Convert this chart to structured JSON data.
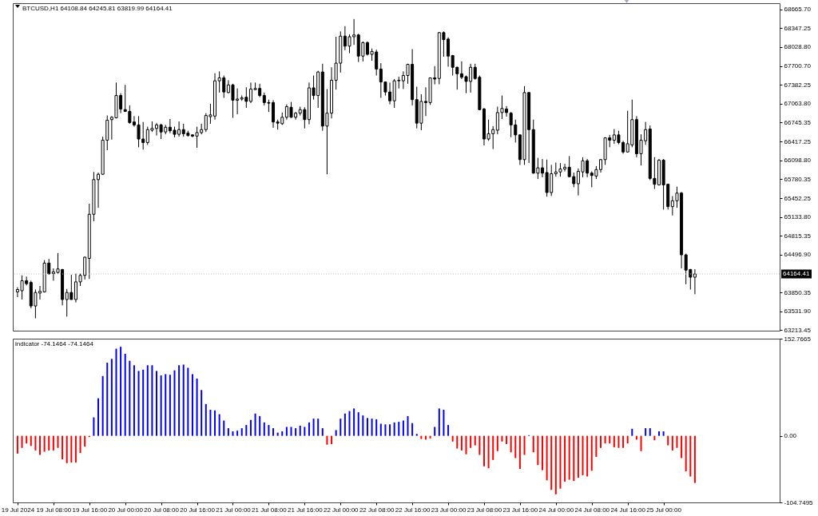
{
  "chart_data": [
    {
      "type": "candlestick",
      "title": "BTCUSD,H1 64108.84 64245.81 63819.99 64164.41",
      "x": [
        "2024-07-19T00:00",
        "2024-07-19T01:00",
        "2024-07-19T02:00",
        "2024-07-19T03:00",
        "2024-07-19T04:00",
        "2024-07-19T05:00",
        "2024-07-19T06:00",
        "2024-07-19T07:00",
        "2024-07-19T08:00",
        "2024-07-19T09:00",
        "2024-07-19T10:00",
        "2024-07-19T11:00",
        "2024-07-19T12:00",
        "2024-07-19T13:00",
        "2024-07-19T14:00",
        "2024-07-19T15:00",
        "2024-07-19T16:00",
        "2024-07-19T17:00",
        "2024-07-19T18:00",
        "2024-07-19T19:00",
        "2024-07-19T20:00",
        "2024-07-19T21:00",
        "2024-07-19T22:00",
        "2024-07-19T23:00",
        "2024-07-20T00:00",
        "2024-07-20T01:00",
        "2024-07-20T02:00",
        "2024-07-20T03:00",
        "2024-07-20T04:00",
        "2024-07-20T05:00",
        "2024-07-20T06:00",
        "2024-07-20T07:00",
        "2024-07-20T08:00",
        "2024-07-20T09:00",
        "2024-07-20T10:00",
        "2024-07-20T11:00",
        "2024-07-20T12:00",
        "2024-07-20T13:00",
        "2024-07-20T14:00",
        "2024-07-20T15:00",
        "2024-07-20T16:00",
        "2024-07-20T17:00",
        "2024-07-20T18:00",
        "2024-07-20T19:00",
        "2024-07-20T20:00",
        "2024-07-20T21:00",
        "2024-07-20T22:00",
        "2024-07-20T23:00",
        "2024-07-21T00:00",
        "2024-07-21T01:00",
        "2024-07-21T02:00",
        "2024-07-21T03:00",
        "2024-07-21T04:00",
        "2024-07-21T05:00",
        "2024-07-21T06:00",
        "2024-07-21T07:00",
        "2024-07-21T08:00",
        "2024-07-21T09:00",
        "2024-07-21T10:00",
        "2024-07-21T11:00",
        "2024-07-21T12:00",
        "2024-07-21T13:00",
        "2024-07-21T14:00",
        "2024-07-21T15:00",
        "2024-07-21T16:00",
        "2024-07-21T17:00",
        "2024-07-21T18:00",
        "2024-07-21T19:00",
        "2024-07-21T20:00",
        "2024-07-21T21:00",
        "2024-07-21T22:00",
        "2024-07-21T23:00",
        "2024-07-22T00:00",
        "2024-07-22T01:00",
        "2024-07-22T02:00",
        "2024-07-22T03:00",
        "2024-07-22T04:00",
        "2024-07-22T05:00",
        "2024-07-22T06:00",
        "2024-07-22T07:00",
        "2024-07-22T08:00",
        "2024-07-22T09:00",
        "2024-07-22T10:00",
        "2024-07-22T11:00",
        "2024-07-22T12:00",
        "2024-07-22T13:00",
        "2024-07-22T14:00",
        "2024-07-22T15:00",
        "2024-07-22T16:00",
        "2024-07-22T17:00",
        "2024-07-22T18:00",
        "2024-07-22T19:00",
        "2024-07-22T20:00",
        "2024-07-22T21:00",
        "2024-07-22T22:00",
        "2024-07-22T23:00",
        "2024-07-23T00:00",
        "2024-07-23T01:00",
        "2024-07-23T02:00",
        "2024-07-23T03:00",
        "2024-07-23T04:00",
        "2024-07-23T05:00",
        "2024-07-23T06:00",
        "2024-07-23T07:00",
        "2024-07-23T08:00",
        "2024-07-23T09:00",
        "2024-07-23T10:00",
        "2024-07-23T11:00",
        "2024-07-23T12:00",
        "2024-07-23T13:00",
        "2024-07-23T14:00",
        "2024-07-23T15:00",
        "2024-07-23T16:00",
        "2024-07-23T17:00",
        "2024-07-23T18:00",
        "2024-07-23T19:00",
        "2024-07-23T20:00",
        "2024-07-23T21:00",
        "2024-07-23T22:00",
        "2024-07-23T23:00",
        "2024-07-24T00:00",
        "2024-07-24T01:00",
        "2024-07-24T02:00",
        "2024-07-24T03:00",
        "2024-07-24T04:00",
        "2024-07-24T05:00",
        "2024-07-24T06:00",
        "2024-07-24T07:00",
        "2024-07-24T08:00",
        "2024-07-24T09:00",
        "2024-07-24T10:00",
        "2024-07-24T11:00",
        "2024-07-24T12:00",
        "2024-07-24T13:00",
        "2024-07-24T14:00",
        "2024-07-24T15:00",
        "2024-07-24T16:00",
        "2024-07-24T17:00",
        "2024-07-24T18:00",
        "2024-07-24T19:00",
        "2024-07-24T20:00",
        "2024-07-24T21:00",
        "2024-07-24T22:00",
        "2024-07-24T23:00",
        "2024-07-25T00:00",
        "2024-07-25T01:00",
        "2024-07-25T02:00",
        "2024-07-25T03:00",
        "2024-07-25T04:00",
        "2024-07-25T05:00",
        "2024-07-25T06:00",
        "2024-07-25T07:00"
      ],
      "ohlc": [
        [
          63860,
          63940,
          63770,
          63900
        ],
        [
          63880,
          64140,
          63730,
          64050
        ],
        [
          64050,
          64120,
          63970,
          64000
        ],
        [
          64020,
          64050,
          63580,
          63620
        ],
        [
          63620,
          63900,
          63410,
          63850
        ],
        [
          63840,
          63960,
          63730,
          63870
        ],
        [
          63860,
          64400,
          63850,
          64350
        ],
        [
          64350,
          64420,
          64150,
          64170
        ],
        [
          64170,
          64260,
          64050,
          64200
        ],
        [
          64190,
          64520,
          64170,
          64250
        ],
        [
          64240,
          64250,
          63630,
          63730
        ],
        [
          63730,
          63910,
          63440,
          63850
        ],
        [
          63850,
          64150,
          63730,
          63730
        ],
        [
          63730,
          64170,
          63680,
          64030
        ],
        [
          64030,
          64170,
          63960,
          64140
        ],
        [
          64140,
          64460,
          64070,
          64450
        ],
        [
          64430,
          65360,
          64080,
          65180
        ],
        [
          65180,
          65900,
          65060,
          65770
        ],
        [
          65770,
          65890,
          65290,
          65860
        ],
        [
          65860,
          66500,
          65850,
          66440
        ],
        [
          66440,
          66860,
          66270,
          66780
        ],
        [
          66790,
          66850,
          66450,
          66830
        ],
        [
          66820,
          67420,
          66810,
          67200
        ],
        [
          67200,
          67240,
          66900,
          66970
        ],
        [
          66960,
          67380,
          66920,
          66930
        ],
        [
          66930,
          67030,
          66720,
          66740
        ],
        [
          66750,
          66850,
          66670,
          66700
        ],
        [
          66700,
          66850,
          66320,
          66460
        ],
        [
          66460,
          66750,
          66280,
          66400
        ],
        [
          66400,
          66670,
          66360,
          66620
        ],
        [
          66610,
          66760,
          66580,
          66640
        ],
        [
          66640,
          66730,
          66520,
          66700
        ],
        [
          66700,
          66720,
          66460,
          66580
        ],
        [
          66580,
          66700,
          66540,
          66660
        ],
        [
          66660,
          66800,
          66560,
          66600
        ],
        [
          66610,
          66670,
          66490,
          66540
        ],
        [
          66540,
          66760,
          66500,
          66620
        ],
        [
          66620,
          66720,
          66500,
          66550
        ],
        [
          66560,
          66600,
          66500,
          66520
        ],
        [
          66530,
          66540,
          66490,
          66510
        ],
        [
          66510,
          66670,
          66310,
          66570
        ],
        [
          66570,
          66720,
          66540,
          66620
        ],
        [
          66620,
          66900,
          66580,
          66860
        ],
        [
          66840,
          67060,
          66720,
          66870
        ],
        [
          66850,
          67580,
          66790,
          67450
        ],
        [
          67450,
          67610,
          67250,
          67500
        ],
        [
          67500,
          67540,
          67160,
          67260
        ],
        [
          67250,
          67460,
          67240,
          67380
        ],
        [
          67380,
          67400,
          66820,
          67120
        ],
        [
          67120,
          67320,
          66880,
          67140
        ],
        [
          67140,
          67200,
          67110,
          67160
        ],
        [
          67170,
          67340,
          66990,
          67100
        ],
        [
          67100,
          67420,
          67070,
          67310
        ],
        [
          67300,
          67420,
          67290,
          67320
        ],
        [
          67320,
          67400,
          67170,
          67200
        ],
        [
          67200,
          67250,
          67030,
          67080
        ],
        [
          67080,
          67130,
          66920,
          67070
        ],
        [
          67080,
          67120,
          66650,
          66750
        ],
        [
          66750,
          66790,
          66620,
          66730
        ],
        [
          66720,
          66910,
          66700,
          66830
        ],
        [
          66830,
          67050,
          66790,
          67010
        ],
        [
          67000,
          67090,
          66820,
          66830
        ],
        [
          66830,
          66920,
          66790,
          66900
        ],
        [
          66900,
          67010,
          66860,
          66960
        ],
        [
          66960,
          67000,
          66640,
          66790
        ],
        [
          66790,
          67420,
          66710,
          67330
        ],
        [
          67330,
          67540,
          67130,
          67200
        ],
        [
          67200,
          67620,
          66990,
          67600
        ],
        [
          67600,
          67740,
          66600,
          66680
        ],
        [
          66680,
          67310,
          65860,
          66900
        ],
        [
          66900,
          67680,
          66810,
          67460
        ],
        [
          67460,
          68200,
          67300,
          67750
        ],
        [
          67750,
          68290,
          67590,
          68210
        ],
        [
          68210,
          68380,
          67970,
          68040
        ],
        [
          68040,
          68240,
          67920,
          68200
        ],
        [
          68200,
          68500,
          68060,
          68230
        ],
        [
          68230,
          68250,
          67770,
          67870
        ],
        [
          67870,
          68120,
          67780,
          68100
        ],
        [
          68100,
          68120,
          67880,
          67900
        ],
        [
          67900,
          68000,
          67790,
          67950
        ],
        [
          67940,
          67980,
          67540,
          67650
        ],
        [
          67650,
          67750,
          67160,
          67430
        ],
        [
          67430,
          67440,
          67200,
          67260
        ],
        [
          67260,
          67420,
          67050,
          67110
        ],
        [
          67110,
          67480,
          66990,
          67450
        ],
        [
          67450,
          67520,
          67320,
          67460
        ],
        [
          67450,
          67610,
          67310,
          67540
        ],
        [
          67540,
          67740,
          67400,
          67730
        ],
        [
          67730,
          67990,
          67030,
          67130
        ],
        [
          67130,
          67350,
          66640,
          66730
        ],
        [
          66730,
          67220,
          66610,
          67100
        ],
        [
          67100,
          67340,
          66850,
          67080
        ],
        [
          67080,
          67500,
          67040,
          67500
        ],
        [
          67500,
          67700,
          67390,
          67480
        ],
        [
          67490,
          68280,
          67390,
          68270
        ],
        [
          68270,
          68290,
          67860,
          68150
        ],
        [
          68160,
          68190,
          67690,
          67870
        ],
        [
          67880,
          67890,
          67540,
          67680
        ],
        [
          67680,
          67690,
          67300,
          67570
        ],
        [
          67570,
          67780,
          67480,
          67510
        ],
        [
          67520,
          67540,
          67240,
          67440
        ],
        [
          67440,
          67740,
          67250,
          67680
        ],
        [
          67680,
          67740,
          67470,
          67490
        ],
        [
          67510,
          67540,
          66950,
          66960
        ],
        [
          66970,
          66990,
          66350,
          66460
        ],
        [
          66460,
          66790,
          66430,
          66550
        ],
        [
          66550,
          66680,
          66290,
          66620
        ],
        [
          66610,
          67010,
          66540,
          66910
        ],
        [
          66910,
          67200,
          66800,
          66980
        ],
        [
          66970,
          67020,
          66840,
          66910
        ],
        [
          66900,
          66920,
          66490,
          66700
        ],
        [
          66700,
          66790,
          66400,
          66530
        ],
        [
          66530,
          66540,
          66020,
          66110
        ],
        [
          66110,
          67360,
          66020,
          67250
        ],
        [
          67250,
          67260,
          66050,
          66620
        ],
        [
          66620,
          66790,
          65870,
          65880
        ],
        [
          65880,
          66140,
          65780,
          65970
        ],
        [
          65970,
          66120,
          65810,
          65880
        ],
        [
          65890,
          66110,
          65480,
          65550
        ],
        [
          65550,
          66020,
          65490,
          65870
        ],
        [
          65870,
          66060,
          65820,
          65900
        ],
        [
          65900,
          66050,
          65820,
          65950
        ],
        [
          65950,
          66040,
          65910,
          65980
        ],
        [
          65980,
          66170,
          65810,
          65820
        ],
        [
          65820,
          65890,
          65640,
          65700
        ],
        [
          65700,
          65960,
          65500,
          65910
        ],
        [
          65900,
          66150,
          65810,
          66090
        ],
        [
          66090,
          66120,
          65810,
          65880
        ],
        [
          65880,
          65910,
          65640,
          65840
        ],
        [
          65830,
          66000,
          65780,
          65940
        ],
        [
          65940,
          66120,
          65890,
          66110
        ],
        [
          66110,
          66490,
          66020,
          66480
        ],
        [
          66480,
          66530,
          66320,
          66440
        ],
        [
          66440,
          66630,
          66380,
          66530
        ],
        [
          66530,
          66600,
          66370,
          66400
        ],
        [
          66400,
          66430,
          66210,
          66240
        ],
        [
          66240,
          66940,
          66230,
          66380
        ],
        [
          66360,
          67130,
          66320,
          66790
        ],
        [
          66790,
          66850,
          66150,
          66210
        ],
        [
          66210,
          66540,
          66010,
          66440
        ],
        [
          66430,
          66750,
          66360,
          66620
        ],
        [
          66630,
          66690,
          65760,
          65790
        ],
        [
          65790,
          66150,
          65610,
          65690
        ],
        [
          65680,
          66120,
          65670,
          66100
        ],
        [
          66100,
          66120,
          65260,
          65680
        ],
        [
          65690,
          65700,
          65260,
          65310
        ],
        [
          65310,
          65490,
          65160,
          65410
        ],
        [
          65410,
          65650,
          65290,
          65540
        ],
        [
          65540,
          65560,
          64260,
          64490
        ],
        [
          64490,
          64510,
          63990,
          64230
        ],
        [
          64240,
          64250,
          63900,
          64110
        ],
        [
          64108.84,
          64245.81,
          63819.99,
          64164.41
        ]
      ],
      "xlim": [
        "2024-07-18T23:50",
        "2024-07-26T01:00"
      ],
      "ylim": [
        63200,
        68770
      ],
      "yticks": [
        {
          "value": 68665.7,
          "label": "68665.70"
        },
        68347.25,
        {
          "value": 68028.8,
          "label": "68028.80"
        },
        {
          "value": 67700.7,
          "label": "67700.70"
        },
        67382.25,
        {
          "value": 67063.8,
          "label": "67063.80"
        },
        66745.35,
        66417.25,
        {
          "value": 66098.8,
          "label": "66098.80"
        },
        65780.35,
        65452.25,
        {
          "value": 65133.8,
          "label": "65133.80"
        },
        64815.35,
        {
          "value": 64496.9,
          "label": "64496.90"
        },
        63850.35,
        {
          "value": 63531.9,
          "label": "63531.90"
        },
        63213.45
      ],
      "ref_lines": [
        {
          "axis": "y",
          "value": 64164.41,
          "label": "64164.41",
          "color": "#c0c0c0",
          "line_style": "dotted"
        }
      ],
      "tick_labels": "y"
    },
    {
      "type": "bar",
      "title": "indicator -74.1464 -74.1464",
      "x": [
        "2024-07-19T00:00",
        "2024-07-19T01:00",
        "2024-07-19T02:00",
        "2024-07-19T03:00",
        "2024-07-19T04:00",
        "2024-07-19T05:00",
        "2024-07-19T06:00",
        "2024-07-19T07:00",
        "2024-07-19T08:00",
        "2024-07-19T09:00",
        "2024-07-19T10:00",
        "2024-07-19T11:00",
        "2024-07-19T12:00",
        "2024-07-19T13:00",
        "2024-07-19T14:00",
        "2024-07-19T15:00",
        "2024-07-19T16:00",
        "2024-07-19T17:00",
        "2024-07-19T18:00",
        "2024-07-19T19:00",
        "2024-07-19T20:00",
        "2024-07-19T21:00",
        "2024-07-19T22:00",
        "2024-07-19T23:00",
        "2024-07-20T00:00",
        "2024-07-20T01:00",
        "2024-07-20T02:00",
        "2024-07-20T03:00",
        "2024-07-20T04:00",
        "2024-07-20T05:00",
        "2024-07-20T06:00",
        "2024-07-20T07:00",
        "2024-07-20T08:00",
        "2024-07-20T09:00",
        "2024-07-20T10:00",
        "2024-07-20T11:00",
        "2024-07-20T12:00",
        "2024-07-20T13:00",
        "2024-07-20T14:00",
        "2024-07-20T15:00",
        "2024-07-20T16:00",
        "2024-07-20T17:00",
        "2024-07-20T18:00",
        "2024-07-20T19:00",
        "2024-07-20T20:00",
        "2024-07-20T21:00",
        "2024-07-20T22:00",
        "2024-07-20T23:00",
        "2024-07-21T00:00",
        "2024-07-21T01:00",
        "2024-07-21T02:00",
        "2024-07-21T03:00",
        "2024-07-21T04:00",
        "2024-07-21T05:00",
        "2024-07-21T06:00",
        "2024-07-21T07:00",
        "2024-07-21T08:00",
        "2024-07-21T09:00",
        "2024-07-21T10:00",
        "2024-07-21T11:00",
        "2024-07-21T12:00",
        "2024-07-21T13:00",
        "2024-07-21T14:00",
        "2024-07-21T15:00",
        "2024-07-21T16:00",
        "2024-07-21T17:00",
        "2024-07-21T18:00",
        "2024-07-21T19:00",
        "2024-07-21T20:00",
        "2024-07-21T21:00",
        "2024-07-21T22:00",
        "2024-07-21T23:00",
        "2024-07-22T00:00",
        "2024-07-22T01:00",
        "2024-07-22T02:00",
        "2024-07-22T03:00",
        "2024-07-22T04:00",
        "2024-07-22T05:00",
        "2024-07-22T06:00",
        "2024-07-22T07:00",
        "2024-07-22T08:00",
        "2024-07-22T09:00",
        "2024-07-22T10:00",
        "2024-07-22T11:00",
        "2024-07-22T12:00",
        "2024-07-22T13:00",
        "2024-07-22T14:00",
        "2024-07-22T15:00",
        "2024-07-22T16:00",
        "2024-07-22T17:00",
        "2024-07-22T18:00",
        "2024-07-22T19:00",
        "2024-07-22T20:00",
        "2024-07-22T21:00",
        "2024-07-22T22:00",
        "2024-07-22T23:00",
        "2024-07-23T00:00",
        "2024-07-23T01:00",
        "2024-07-23T02:00",
        "2024-07-23T03:00",
        "2024-07-23T04:00",
        "2024-07-23T05:00",
        "2024-07-23T06:00",
        "2024-07-23T07:00",
        "2024-07-23T08:00",
        "2024-07-23T09:00",
        "2024-07-23T10:00",
        "2024-07-23T11:00",
        "2024-07-23T12:00",
        "2024-07-23T13:00",
        "2024-07-23T14:00",
        "2024-07-23T15:00",
        "2024-07-23T16:00",
        "2024-07-23T17:00",
        "2024-07-23T18:00",
        "2024-07-23T19:00",
        "2024-07-23T20:00",
        "2024-07-23T21:00",
        "2024-07-23T22:00",
        "2024-07-23T23:00",
        "2024-07-24T00:00",
        "2024-07-24T01:00",
        "2024-07-24T02:00",
        "2024-07-24T03:00",
        "2024-07-24T04:00",
        "2024-07-24T05:00",
        "2024-07-24T06:00",
        "2024-07-24T07:00",
        "2024-07-24T08:00",
        "2024-07-24T09:00",
        "2024-07-24T10:00",
        "2024-07-24T11:00",
        "2024-07-24T12:00",
        "2024-07-24T13:00",
        "2024-07-24T14:00",
        "2024-07-24T15:00",
        "2024-07-24T16:00",
        "2024-07-24T17:00",
        "2024-07-24T18:00",
        "2024-07-24T19:00",
        "2024-07-24T20:00",
        "2024-07-24T21:00",
        "2024-07-24T22:00",
        "2024-07-24T23:00",
        "2024-07-25T00:00",
        "2024-07-25T01:00",
        "2024-07-25T02:00",
        "2024-07-25T03:00",
        "2024-07-25T04:00",
        "2024-07-25T05:00",
        "2024-07-25T06:00",
        "2024-07-25T07:00"
      ],
      "values": [
        -28,
        -19,
        -12,
        -16,
        -23,
        -30,
        -25,
        -23,
        -23,
        -19,
        -37,
        -43,
        -42,
        -42,
        -27,
        -17,
        -2,
        29,
        59,
        94,
        115,
        121,
        137,
        140,
        129,
        118,
        111,
        102,
        104,
        111,
        111,
        102,
        95,
        97,
        96,
        103,
        111,
        112,
        107,
        97,
        90,
        72,
        50,
        41,
        40,
        34,
        24,
        12,
        7,
        8,
        12,
        17,
        25,
        35,
        31,
        21,
        17,
        12,
        5,
        7,
        14,
        14,
        12,
        16,
        14,
        21,
        27,
        27,
        12,
        -14,
        -13,
        9,
        27,
        35,
        39,
        43,
        37,
        32,
        28,
        27,
        26,
        19,
        18,
        18,
        21,
        22,
        24,
        31,
        20,
        3,
        -5,
        -6,
        -4,
        14,
        43,
        41,
        17,
        -9,
        -20,
        -23,
        -29,
        -19,
        -15,
        -30,
        -48,
        -51,
        -38,
        -24,
        -9,
        -13,
        -26,
        -35,
        -52,
        -30,
        1,
        -26,
        -46,
        -54,
        -70,
        -85,
        -92,
        -83,
        -72,
        -69,
        -71,
        -66,
        -62,
        -64,
        -55,
        -33,
        -19,
        -12,
        -12,
        -18,
        -19,
        -19,
        -12,
        11,
        -6,
        -24,
        12,
        12,
        -7,
        7,
        7,
        -15,
        -23,
        -19,
        -35,
        -56,
        -64,
        -74.1464
      ],
      "colors": [
        "#ff0000",
        "#ff0000",
        "#ff0000",
        "#ff0000",
        "#ff0000",
        "#ff0000",
        "#ff0000",
        "#ff0000",
        "#ff0000",
        "#ff0000",
        "#ff0000",
        "#ff0000",
        "#ff0000",
        "#ff0000",
        "#ff0000",
        "#ff0000",
        "#ff0000",
        "#0000ff",
        "#0000ff",
        "#0000ff",
        "#0000ff",
        "#0000ff",
        "#0000ff",
        "#0000ff",
        "#0000ff",
        "#0000ff",
        "#0000ff",
        "#0000ff",
        "#0000ff",
        "#0000ff",
        "#0000ff",
        "#0000ff",
        "#0000ff",
        "#0000ff",
        "#0000ff",
        "#0000ff",
        "#0000ff",
        "#0000ff",
        "#0000ff",
        "#0000ff",
        "#0000ff",
        "#0000ff",
        "#0000ff",
        "#0000ff",
        "#0000ff",
        "#0000ff",
        "#0000ff",
        "#0000ff",
        "#0000ff",
        "#0000ff",
        "#0000ff",
        "#0000ff",
        "#0000ff",
        "#0000ff",
        "#0000ff",
        "#0000ff",
        "#0000ff",
        "#0000ff",
        "#0000ff",
        "#0000ff",
        "#0000ff",
        "#0000ff",
        "#0000ff",
        "#0000ff",
        "#0000ff",
        "#0000ff",
        "#0000ff",
        "#0000ff",
        "#0000ff",
        "#ff0000",
        "#ff0000",
        "#0000ff",
        "#0000ff",
        "#0000ff",
        "#0000ff",
        "#0000ff",
        "#0000ff",
        "#0000ff",
        "#0000ff",
        "#0000ff",
        "#0000ff",
        "#0000ff",
        "#0000ff",
        "#0000ff",
        "#0000ff",
        "#0000ff",
        "#0000ff",
        "#0000ff",
        "#0000ff",
        "#0000ff",
        "#ff0000",
        "#ff0000",
        "#ff0000",
        "#0000ff",
        "#0000ff",
        "#0000ff",
        "#0000ff",
        "#ff0000",
        "#ff0000",
        "#ff0000",
        "#ff0000",
        "#ff0000",
        "#ff0000",
        "#ff0000",
        "#ff0000",
        "#ff0000",
        "#ff0000",
        "#ff0000",
        "#ff0000",
        "#ff0000",
        "#ff0000",
        "#ff0000",
        "#ff0000",
        "#ff0000",
        "#0000ff",
        "#ff0000",
        "#ff0000",
        "#ff0000",
        "#ff0000",
        "#ff0000",
        "#ff0000",
        "#ff0000",
        "#ff0000",
        "#ff0000",
        "#ff0000",
        "#ff0000",
        "#ff0000",
        "#ff0000",
        "#ff0000",
        "#ff0000",
        "#ff0000",
        "#ff0000",
        "#ff0000",
        "#ff0000",
        "#ff0000",
        "#ff0000",
        "#ff0000",
        "#0000ff",
        "#ff0000",
        "#ff0000",
        "#0000ff",
        "#0000ff",
        "#ff0000",
        "#0000ff",
        "#0000ff",
        "#ff0000",
        "#ff0000",
        "#ff0000",
        "#ff0000",
        "#ff0000",
        "#ff0000",
        "#ff0000"
      ],
      "xlim": [
        "2024-07-18T23:50",
        "2024-07-26T01:00"
      ],
      "xticks": [
        {
          "value": "2024-07-19T00:00",
          "label": "19 Jul 2024"
        },
        {
          "value": "2024-07-19T08:00",
          "label": "19 Jul 08:00"
        },
        {
          "value": "2024-07-19T16:00",
          "label": "19 Jul 16:00"
        },
        {
          "value": "2024-07-20T00:00",
          "label": "20 Jul 00:00"
        },
        {
          "value": "2024-07-20T08:00",
          "label": "20 Jul 08:00"
        },
        {
          "value": "2024-07-20T16:00",
          "label": "20 Jul 16:00"
        },
        {
          "value": "2024-07-21T00:00",
          "label": "21 Jul 00:00"
        },
        {
          "value": "2024-07-21T08:00",
          "label": "21 Jul 08:00"
        },
        {
          "value": "2024-07-21T16:00",
          "label": "21 Jul 16:00"
        },
        {
          "value": "2024-07-22T00:00",
          "label": "22 Jul 00:00"
        },
        {
          "value": "2024-07-22T08:00",
          "label": "22 Jul 08:00"
        },
        {
          "value": "2024-07-22T16:00",
          "label": "22 Jul 16:00"
        },
        {
          "value": "2024-07-23T00:00",
          "label": "23 Jul 00:00"
        },
        {
          "value": "2024-07-23T08:00",
          "label": "23 Jul 08:00"
        },
        {
          "value": "2024-07-23T16:00",
          "label": "23 Jul 16:00"
        },
        {
          "value": "2024-07-24T00:00",
          "label": "24 Jul 00:00"
        },
        {
          "value": "2024-07-24T08:00",
          "label": "24 Jul 08:00"
        },
        {
          "value": "2024-07-24T16:00",
          "label": "24 Jul 16:00"
        },
        {
          "value": "2024-07-25T00:00",
          "label": "25 Jul 00:00"
        }
      ],
      "ylim": [
        -104.7495,
        152.7665
      ],
      "yticks": [
        152.7665,
        {
          "value": 0,
          "label": "0.00"
        },
        -104.7495
      ]
    }
  ]
}
